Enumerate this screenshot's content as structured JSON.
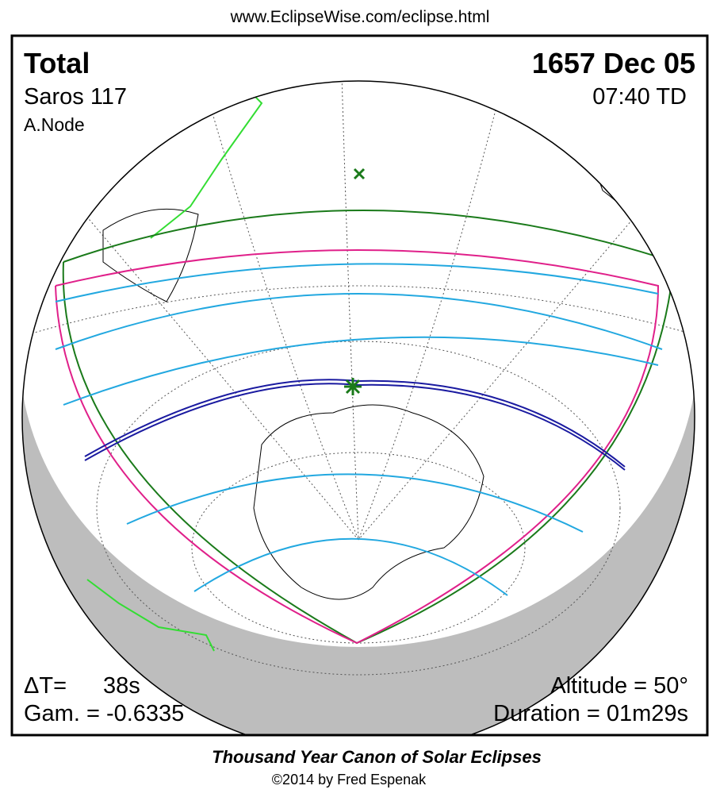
{
  "header": {
    "url": "www.EclipseWise.com/eclipse.html"
  },
  "info": {
    "type": "Total",
    "date": "1657 Dec 05",
    "saros": "Saros 117",
    "time": "07:40 TD",
    "node": "A.Node",
    "delta_t_label": "ΔT=",
    "delta_t": "38s",
    "gamma": "Gam. = -0.6335",
    "altitude": "Altitude = 50°",
    "duration": "Duration = 01m29s"
  },
  "footer": {
    "title": "Thousand Year Canon of Solar Eclipses",
    "copyright": "©2014 by Fred Espenak"
  }
}
